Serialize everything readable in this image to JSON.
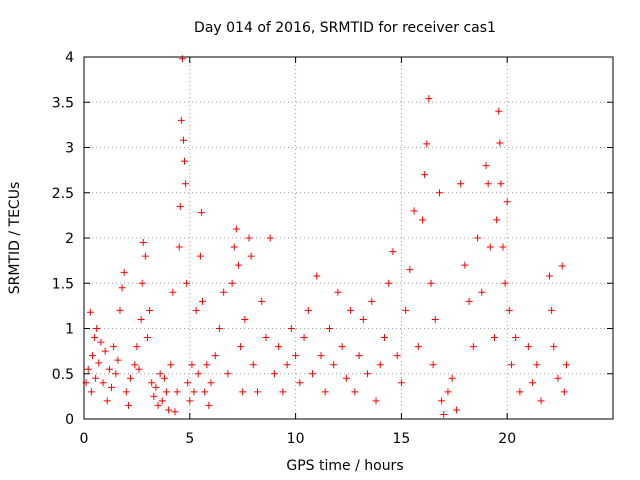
{
  "chart_data": {
    "type": "scatter",
    "title": "Day 014 of 2016, SRMTID for receiver cas1",
    "xlabel": "GPS time / hours",
    "ylabel": "SRMTID / TECUs",
    "xlim": [
      0,
      25
    ],
    "ylim": [
      0,
      4
    ],
    "xticks": [
      0,
      5,
      10,
      15,
      20
    ],
    "xtick_labels": [
      "0",
      "5",
      "10",
      "15",
      "20"
    ],
    "yticks": [
      0,
      0.5,
      1,
      1.5,
      2,
      2.5,
      3,
      3.5,
      4
    ],
    "ytick_labels": [
      "0",
      "0.5",
      "1",
      "1.5",
      "2",
      "2.5",
      "3",
      "3.5",
      "4"
    ],
    "grid": true,
    "marker": "+",
    "color": "#ff0000",
    "series": [
      {
        "name": "SRMTID",
        "points": [
          [
            0.1,
            0.4
          ],
          [
            0.2,
            0.55
          ],
          [
            0.3,
            1.18
          ],
          [
            0.35,
            0.3
          ],
          [
            0.4,
            0.7
          ],
          [
            0.5,
            0.9
          ],
          [
            0.55,
            0.45
          ],
          [
            0.6,
            1.0
          ],
          [
            0.7,
            0.62
          ],
          [
            0.8,
            0.85
          ],
          [
            0.9,
            0.4
          ],
          [
            1.0,
            0.75
          ],
          [
            1.1,
            0.2
          ],
          [
            1.2,
            0.55
          ],
          [
            1.3,
            0.35
          ],
          [
            1.4,
            0.8
          ],
          [
            1.5,
            0.5
          ],
          [
            1.6,
            0.65
          ],
          [
            1.7,
            1.2
          ],
          [
            1.8,
            1.45
          ],
          [
            1.9,
            1.62
          ],
          [
            2.0,
            0.3
          ],
          [
            2.1,
            0.15
          ],
          [
            2.2,
            0.45
          ],
          [
            2.4,
            0.6
          ],
          [
            2.5,
            0.8
          ],
          [
            2.6,
            0.55
          ],
          [
            2.7,
            1.1
          ],
          [
            2.75,
            1.5
          ],
          [
            2.8,
            1.95
          ],
          [
            2.9,
            1.8
          ],
          [
            3.0,
            0.9
          ],
          [
            3.1,
            1.2
          ],
          [
            3.2,
            0.4
          ],
          [
            3.3,
            0.25
          ],
          [
            3.4,
            0.35
          ],
          [
            3.5,
            0.15
          ],
          [
            3.6,
            0.5
          ],
          [
            3.7,
            0.2
          ],
          [
            3.8,
            0.45
          ],
          [
            3.9,
            0.3
          ],
          [
            4.0,
            0.1
          ],
          [
            4.1,
            0.6
          ],
          [
            4.2,
            1.4
          ],
          [
            4.3,
            0.08
          ],
          [
            4.4,
            0.3
          ],
          [
            4.5,
            1.9
          ],
          [
            4.55,
            2.35
          ],
          [
            4.6,
            3.3
          ],
          [
            4.65,
            3.98
          ],
          [
            4.7,
            3.08
          ],
          [
            4.75,
            2.85
          ],
          [
            4.8,
            2.6
          ],
          [
            4.85,
            1.5
          ],
          [
            4.9,
            0.4
          ],
          [
            5.0,
            0.2
          ],
          [
            5.1,
            0.6
          ],
          [
            5.2,
            0.3
          ],
          [
            5.3,
            1.2
          ],
          [
            5.4,
            0.5
          ],
          [
            5.5,
            1.8
          ],
          [
            5.55,
            2.28
          ],
          [
            5.6,
            1.3
          ],
          [
            5.7,
            0.3
          ],
          [
            5.8,
            0.6
          ],
          [
            5.9,
            0.15
          ],
          [
            6.0,
            0.4
          ],
          [
            6.2,
            0.7
          ],
          [
            6.4,
            1.0
          ],
          [
            6.6,
            1.4
          ],
          [
            6.8,
            0.5
          ],
          [
            7.0,
            1.5
          ],
          [
            7.1,
            1.9
          ],
          [
            7.2,
            2.1
          ],
          [
            7.3,
            1.7
          ],
          [
            7.4,
            0.8
          ],
          [
            7.5,
            0.3
          ],
          [
            7.6,
            1.1
          ],
          [
            7.8,
            2.0
          ],
          [
            7.9,
            1.8
          ],
          [
            8.0,
            0.6
          ],
          [
            8.2,
            0.3
          ],
          [
            8.4,
            1.3
          ],
          [
            8.6,
            0.9
          ],
          [
            8.8,
            2.0
          ],
          [
            9.0,
            0.5
          ],
          [
            9.2,
            0.8
          ],
          [
            9.4,
            0.3
          ],
          [
            9.6,
            0.6
          ],
          [
            9.8,
            1.0
          ],
          [
            10.0,
            0.7
          ],
          [
            10.2,
            0.4
          ],
          [
            10.4,
            0.9
          ],
          [
            10.6,
            1.2
          ],
          [
            10.8,
            0.5
          ],
          [
            11.0,
            1.58
          ],
          [
            11.2,
            0.7
          ],
          [
            11.4,
            0.3
          ],
          [
            11.6,
            1.0
          ],
          [
            11.8,
            0.6
          ],
          [
            12.0,
            1.4
          ],
          [
            12.2,
            0.8
          ],
          [
            12.4,
            0.45
          ],
          [
            12.6,
            1.2
          ],
          [
            12.8,
            0.3
          ],
          [
            13.0,
            0.7
          ],
          [
            13.2,
            1.1
          ],
          [
            13.4,
            0.5
          ],
          [
            13.6,
            1.3
          ],
          [
            13.8,
            0.2
          ],
          [
            14.0,
            0.6
          ],
          [
            14.2,
            0.9
          ],
          [
            14.4,
            1.5
          ],
          [
            14.6,
            1.85
          ],
          [
            14.8,
            0.7
          ],
          [
            15.0,
            0.4
          ],
          [
            15.2,
            1.2
          ],
          [
            15.4,
            1.65
          ],
          [
            15.6,
            2.3
          ],
          [
            15.8,
            0.8
          ],
          [
            16.0,
            2.2
          ],
          [
            16.1,
            2.7
          ],
          [
            16.2,
            3.04
          ],
          [
            16.3,
            3.54
          ],
          [
            16.4,
            1.5
          ],
          [
            16.5,
            0.6
          ],
          [
            16.6,
            1.1
          ],
          [
            16.8,
            2.5
          ],
          [
            16.9,
            0.2
          ],
          [
            17.0,
            0.05
          ],
          [
            17.2,
            0.3
          ],
          [
            17.4,
            0.45
          ],
          [
            17.6,
            0.1
          ],
          [
            17.8,
            2.6
          ],
          [
            18.0,
            1.7
          ],
          [
            18.2,
            1.3
          ],
          [
            18.4,
            0.8
          ],
          [
            18.6,
            2.0
          ],
          [
            18.8,
            1.4
          ],
          [
            19.0,
            2.8
          ],
          [
            19.1,
            2.6
          ],
          [
            19.2,
            1.9
          ],
          [
            19.4,
            0.9
          ],
          [
            19.5,
            2.2
          ],
          [
            19.6,
            3.4
          ],
          [
            19.65,
            3.05
          ],
          [
            19.7,
            2.6
          ],
          [
            19.8,
            1.9
          ],
          [
            19.9,
            1.5
          ],
          [
            20.0,
            2.4
          ],
          [
            20.1,
            1.2
          ],
          [
            20.2,
            0.6
          ],
          [
            20.4,
            0.9
          ],
          [
            20.6,
            0.3
          ],
          [
            21.0,
            0.8
          ],
          [
            21.2,
            0.4
          ],
          [
            21.4,
            0.6
          ],
          [
            21.6,
            0.2
          ],
          [
            22.0,
            1.58
          ],
          [
            22.1,
            1.2
          ],
          [
            22.2,
            0.8
          ],
          [
            22.4,
            0.45
          ],
          [
            22.6,
            1.69
          ],
          [
            22.7,
            0.3
          ],
          [
            22.8,
            0.6
          ]
        ]
      }
    ]
  }
}
